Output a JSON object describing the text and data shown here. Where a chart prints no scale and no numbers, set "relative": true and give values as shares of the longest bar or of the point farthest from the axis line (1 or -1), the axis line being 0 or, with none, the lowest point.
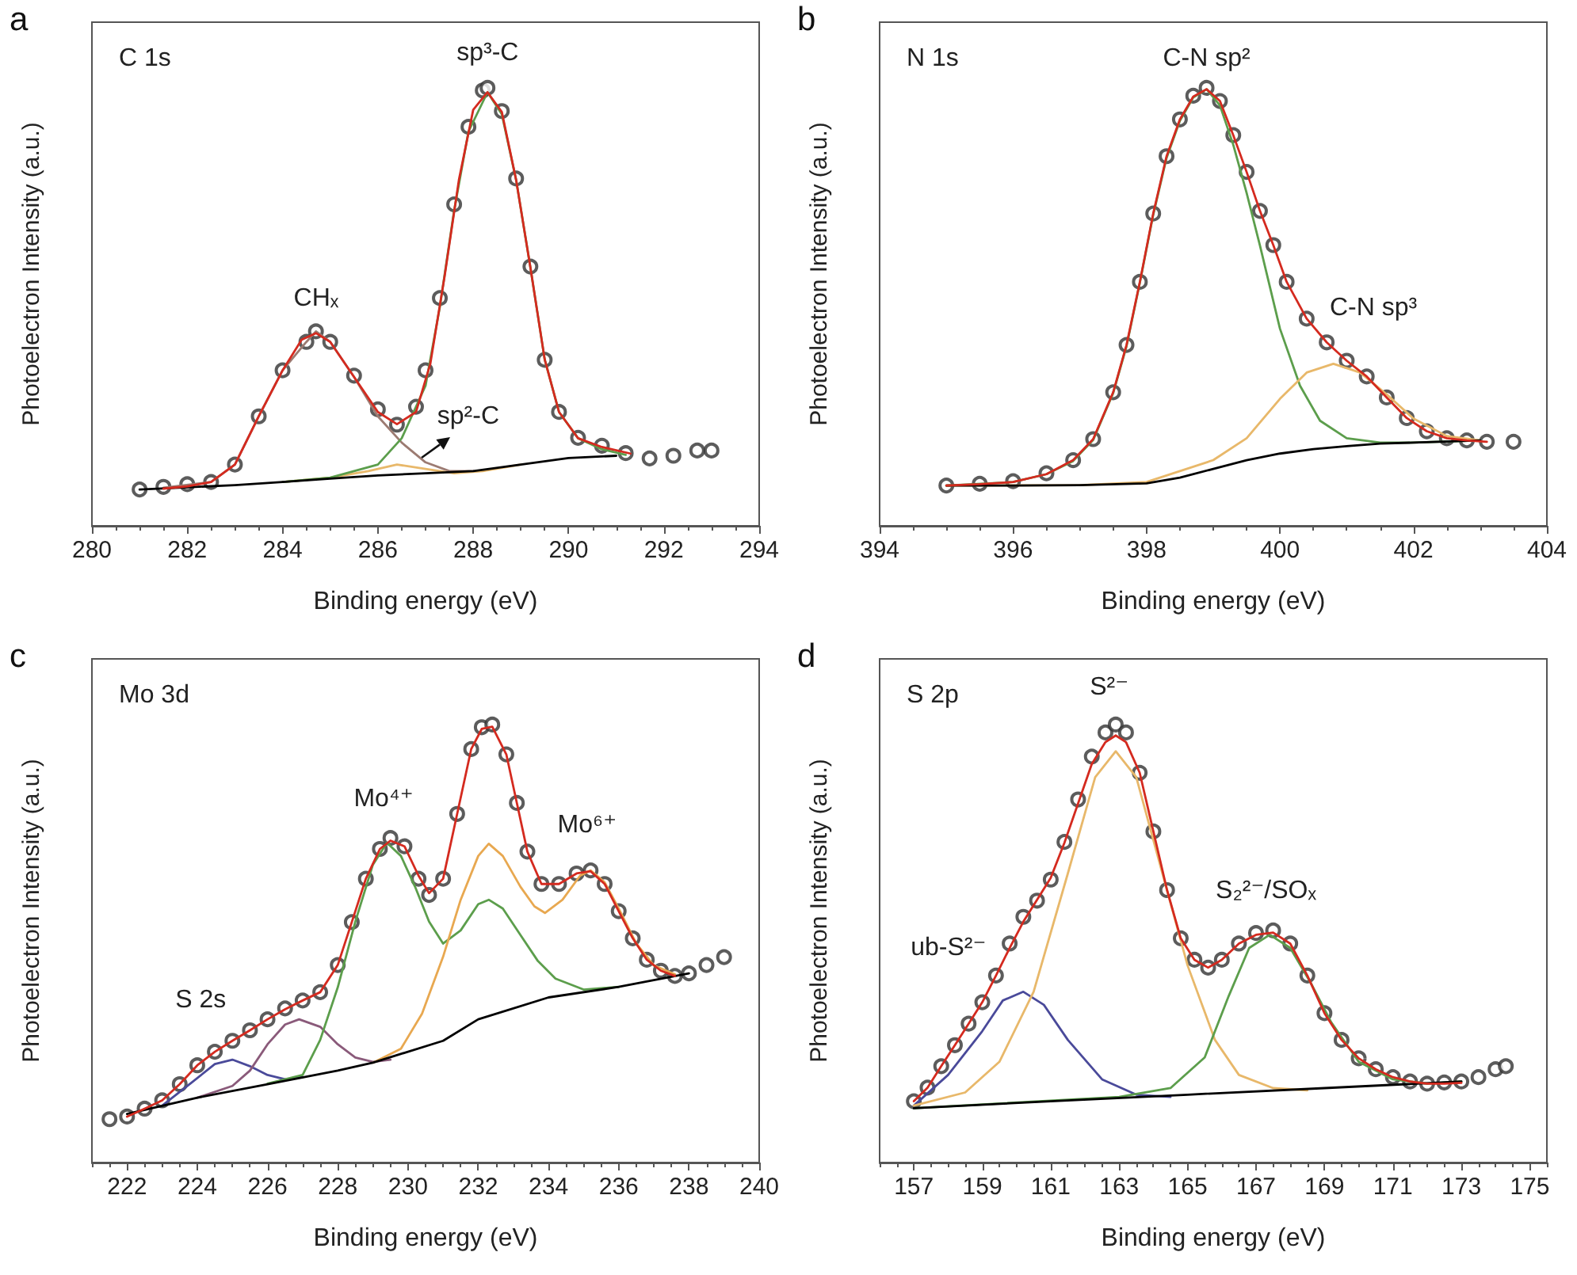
{
  "chart_data": [
    {
      "type": "line",
      "title": "C 1s",
      "xlabel": "Binding energy (eV)",
      "ylabel": "Photoelectron Intensity (a.u.)",
      "relative": true,
      "xlim": [
        280,
        294
      ],
      "xticks": [
        280,
        {
          "value": 280.5,
          "label": null
        },
        {
          "value": 281,
          "label": null
        },
        {
          "value": 281.5,
          "label": null
        },
        282,
        {
          "value": 282.5,
          "label": null
        },
        {
          "value": 283,
          "label": null
        },
        {
          "value": 283.5,
          "label": null
        },
        284,
        {
          "value": 284.5,
          "label": null
        },
        {
          "value": 285,
          "label": null
        },
        {
          "value": 285.5,
          "label": null
        },
        286,
        {
          "value": 286.5,
          "label": null
        },
        {
          "value": 287,
          "label": null
        },
        {
          "value": 287.5,
          "label": null
        },
        288,
        {
          "value": 288.5,
          "label": null
        },
        {
          "value": 289,
          "label": null
        },
        {
          "value": 289.5,
          "label": null
        },
        290,
        {
          "value": 290.5,
          "label": null
        },
        {
          "value": 291,
          "label": null
        },
        {
          "value": 291.5,
          "label": null
        },
        292,
        {
          "value": 292.5,
          "label": null
        },
        {
          "value": 293,
          "label": null
        },
        {
          "value": 293.5,
          "label": null
        },
        294
      ],
      "annotations": [
        "a",
        "CHₓ",
        "sp³-C",
        "sp²-C"
      ],
      "series": [
        {
          "type": "scatter",
          "marker": "circle",
          "color": "#333333",
          "x": [
            281,
            281.5,
            282,
            282.5,
            283,
            283.5,
            284,
            284.5,
            284.7,
            285,
            285.5,
            286,
            286.4,
            286.8,
            287,
            287.3,
            287.6,
            287.9,
            288.2,
            288.3,
            288.6,
            288.9,
            289.2,
            289.5,
            289.8,
            290.2,
            290.7,
            291.2,
            291.7,
            292.2,
            292.7,
            293
          ],
          "values": [
            0.083,
            0.089,
            0.095,
            0.1,
            0.14,
            0.25,
            0.355,
            0.42,
            0.444,
            0.42,
            0.343,
            0.266,
            0.231,
            0.272,
            0.355,
            0.52,
            0.734,
            0.911,
            0.994,
            1,
            0.947,
            0.793,
            0.592,
            0.379,
            0.26,
            0.201,
            0.183,
            0.166,
            0.154,
            0.16,
            0.172,
            0.172
          ]
        },
        {
          "color": "#9c7b72",
          "x": [
            281.5,
            282.5,
            283,
            283.5,
            284,
            284.5,
            284.7,
            285,
            285.5,
            286,
            286.5,
            287,
            287.5,
            288
          ],
          "values": [
            0.087,
            0.1,
            0.14,
            0.25,
            0.355,
            0.42,
            0.444,
            0.42,
            0.34,
            0.25,
            0.19,
            0.145,
            0.125,
            0.125
          ]
        },
        {
          "color": "#e8b86a",
          "x": [
            284,
            285,
            285.8,
            286.4,
            287,
            287.6,
            288.2,
            289
          ],
          "values": [
            0.1,
            0.11,
            0.125,
            0.14,
            0.13,
            0.12,
            0.125,
            0.14
          ]
        },
        {
          "color": "#5c9e4c",
          "x": [
            284,
            285,
            286,
            286.5,
            287,
            287.3,
            287.6,
            287.9,
            288.3,
            288.6,
            288.9,
            289.2,
            289.5,
            289.8,
            290.2,
            290.7,
            291.2
          ],
          "values": [
            0.1,
            0.11,
            0.14,
            0.2,
            0.32,
            0.5,
            0.72,
            0.9,
            0.99,
            0.94,
            0.79,
            0.59,
            0.38,
            0.26,
            0.2,
            0.175,
            0.162
          ]
        },
        {
          "color": "#000000",
          "x": [
            281,
            282,
            283,
            284,
            285,
            286,
            287,
            288,
            289,
            290,
            291
          ],
          "values": [
            0.083,
            0.088,
            0.093,
            0.1,
            0.108,
            0.115,
            0.12,
            0.125,
            0.14,
            0.155,
            0.16
          ]
        },
        {
          "color": "#d42a1f",
          "x": [
            281.5,
            282,
            282.5,
            283,
            283.5,
            284,
            284.4,
            284.7,
            285,
            285.5,
            286,
            286.4,
            286.8,
            287.1,
            287.4,
            287.7,
            288,
            288.3,
            288.6,
            288.9,
            289.2,
            289.5,
            289.8,
            290.2,
            290.7,
            291.3
          ],
          "values": [
            0.085,
            0.09,
            0.1,
            0.14,
            0.25,
            0.355,
            0.425,
            0.44,
            0.42,
            0.34,
            0.26,
            0.232,
            0.26,
            0.37,
            0.57,
            0.79,
            0.95,
            0.99,
            0.945,
            0.79,
            0.59,
            0.38,
            0.26,
            0.2,
            0.18,
            0.165
          ]
        }
      ]
    },
    {
      "type": "line",
      "title": "N 1s",
      "xlabel": "Binding energy (eV)",
      "ylabel": "Photoelectron Intensity (a.u.)",
      "relative": true,
      "xlim": [
        394,
        404
      ],
      "xticks": [
        394,
        {
          "value": 394.5,
          "label": null
        },
        {
          "value": 395,
          "label": null
        },
        {
          "value": 395.5,
          "label": null
        },
        396,
        {
          "value": 396.5,
          "label": null
        },
        {
          "value": 397,
          "label": null
        },
        {
          "value": 397.5,
          "label": null
        },
        398,
        {
          "value": 398.5,
          "label": null
        },
        {
          "value": 399,
          "label": null
        },
        {
          "value": 399.5,
          "label": null
        },
        400,
        {
          "value": 400.5,
          "label": null
        },
        {
          "value": 401,
          "label": null
        },
        {
          "value": 401.5,
          "label": null
        },
        402,
        {
          "value": 402.5,
          "label": null
        },
        {
          "value": 403,
          "label": null
        },
        {
          "value": 403.5,
          "label": null
        },
        404
      ],
      "annotations": [
        "b",
        "C-N sp²",
        "C-N sp³"
      ],
      "series": [
        {
          "type": "scatter",
          "marker": "circle",
          "color": "#333333",
          "x": [
            395,
            395.5,
            396,
            396.5,
            396.9,
            397.2,
            397.5,
            397.7,
            397.9,
            398.1,
            398.3,
            398.5,
            398.7,
            398.9,
            399.1,
            399.3,
            399.5,
            399.7,
            399.9,
            400.1,
            400.4,
            400.7,
            401,
            401.3,
            401.6,
            401.9,
            402.2,
            402.5,
            402.8,
            403.1,
            403.5
          ],
          "values": [
            0.092,
            0.096,
            0.102,
            0.12,
            0.15,
            0.198,
            0.305,
            0.413,
            0.557,
            0.713,
            0.844,
            0.928,
            0.982,
            1,
            0.97,
            0.892,
            0.808,
            0.719,
            0.641,
            0.557,
            0.473,
            0.419,
            0.377,
            0.341,
            0.293,
            0.246,
            0.216,
            0.2,
            0.195,
            0.192,
            0.192
          ]
        },
        {
          "color": "#5c9e4c",
          "x": [
            395,
            396,
            396.5,
            396.9,
            397.2,
            397.5,
            397.7,
            397.9,
            398.1,
            398.3,
            398.5,
            398.7,
            398.9,
            399.1,
            399.3,
            399.5,
            399.7,
            400,
            400.3,
            400.6,
            401,
            401.5,
            402,
            403
          ],
          "values": [
            0.092,
            0.1,
            0.118,
            0.148,
            0.196,
            0.303,
            0.41,
            0.555,
            0.71,
            0.84,
            0.925,
            0.978,
            0.997,
            0.96,
            0.87,
            0.76,
            0.64,
            0.45,
            0.32,
            0.24,
            0.2,
            0.19,
            0.19,
            0.195
          ]
        },
        {
          "color": "#e8b86a",
          "x": [
            395,
            397,
            398,
            399,
            399.5,
            400,
            400.4,
            400.8,
            401.2,
            401.6,
            402,
            402.5,
            403
          ],
          "values": [
            0.092,
            0.093,
            0.1,
            0.15,
            0.2,
            0.29,
            0.35,
            0.37,
            0.35,
            0.3,
            0.245,
            0.205,
            0.195
          ]
        },
        {
          "color": "#000000",
          "x": [
            395,
            396,
            397,
            398,
            398.5,
            399,
            399.5,
            400,
            400.5,
            401,
            401.5,
            402,
            403
          ],
          "values": [
            0.092,
            0.092,
            0.093,
            0.097,
            0.11,
            0.13,
            0.15,
            0.165,
            0.175,
            0.182,
            0.188,
            0.19,
            0.195
          ]
        },
        {
          "color": "#d42a1f",
          "x": [
            395,
            395.5,
            396,
            396.5,
            396.9,
            397.2,
            397.5,
            397.7,
            397.9,
            398.1,
            398.3,
            398.5,
            398.7,
            398.9,
            399.1,
            399.3,
            399.5,
            399.7,
            399.9,
            400.1,
            400.4,
            400.7,
            401,
            401.3,
            401.6,
            401.9,
            402.2,
            402.5,
            402.8,
            403.1
          ],
          "values": [
            0.092,
            0.095,
            0.1,
            0.118,
            0.15,
            0.198,
            0.305,
            0.413,
            0.557,
            0.713,
            0.844,
            0.928,
            0.98,
            0.997,
            0.97,
            0.892,
            0.808,
            0.719,
            0.641,
            0.557,
            0.473,
            0.419,
            0.377,
            0.341,
            0.293,
            0.246,
            0.216,
            0.2,
            0.195,
            0.192
          ]
        }
      ]
    },
    {
      "type": "line",
      "title": "Mo 3d",
      "xlabel": "Binding energy (eV)",
      "ylabel": "Photoelectron Intensity (a.u.)",
      "relative": true,
      "xlim": [
        221,
        240
      ],
      "xticks": [
        {
          "value": 221,
          "label": null
        },
        {
          "value": 221.5,
          "label": null
        },
        222,
        {
          "value": 222.5,
          "label": null
        },
        {
          "value": 223,
          "label": null
        },
        {
          "value": 223.5,
          "label": null
        },
        224,
        {
          "value": 224.5,
          "label": null
        },
        {
          "value": 225,
          "label": null
        },
        {
          "value": 225.5,
          "label": null
        },
        226,
        {
          "value": 226.5,
          "label": null
        },
        {
          "value": 227,
          "label": null
        },
        {
          "value": 227.5,
          "label": null
        },
        228,
        {
          "value": 228.5,
          "label": null
        },
        {
          "value": 229,
          "label": null
        },
        {
          "value": 229.5,
          "label": null
        },
        230,
        {
          "value": 230.5,
          "label": null
        },
        {
          "value": 231,
          "label": null
        },
        {
          "value": 231.5,
          "label": null
        },
        232,
        {
          "value": 232.5,
          "label": null
        },
        {
          "value": 233,
          "label": null
        },
        {
          "value": 233.5,
          "label": null
        },
        234,
        {
          "value": 234.5,
          "label": null
        },
        {
          "value": 235,
          "label": null
        },
        {
          "value": 235.5,
          "label": null
        },
        236,
        {
          "value": 236.5,
          "label": null
        },
        {
          "value": 237,
          "label": null
        },
        {
          "value": 237.5,
          "label": null
        },
        238,
        {
          "value": 238.5,
          "label": null
        },
        {
          "value": 239,
          "label": null
        },
        {
          "value": 239.5,
          "label": null
        },
        240
      ],
      "annotations": [
        "c",
        "S 2s",
        "Mo⁴⁺",
        "Mo⁶⁺"
      ],
      "series": [
        {
          "type": "scatter",
          "marker": "circle",
          "color": "#333333",
          "x": [
            221.5,
            222,
            222.5,
            223,
            223.5,
            224,
            224.5,
            225,
            225.5,
            226,
            226.5,
            227,
            227.5,
            228,
            228.4,
            228.8,
            229.2,
            229.5,
            229.9,
            230.3,
            230.6,
            231,
            231.4,
            231.8,
            232.1,
            232.4,
            232.8,
            233.1,
            233.4,
            233.8,
            234.3,
            234.8,
            235.2,
            235.6,
            236,
            236.4,
            236.8,
            237.2,
            237.6,
            238,
            238.5,
            239
          ],
          "values": [
            0.099,
            0.105,
            0.123,
            0.142,
            0.179,
            0.222,
            0.253,
            0.278,
            0.302,
            0.327,
            0.352,
            0.37,
            0.389,
            0.451,
            0.549,
            0.648,
            0.716,
            0.741,
            0.722,
            0.648,
            0.611,
            0.648,
            0.796,
            0.944,
            0.994,
            1,
            0.932,
            0.821,
            0.71,
            0.636,
            0.636,
            0.66,
            0.667,
            0.636,
            0.574,
            0.512,
            0.463,
            0.438,
            0.426,
            0.432,
            0.451,
            0.469
          ]
        },
        {
          "color": "#4a4a9a",
          "x": [
            223,
            223.8,
            224.5,
            225,
            225.5,
            226,
            226.5,
            227
          ],
          "values": [
            0.13,
            0.18,
            0.225,
            0.235,
            0.22,
            0.2,
            0.19,
            0.195
          ]
        },
        {
          "color": "#8a5a7a",
          "x": [
            224,
            225,
            225.5,
            226,
            226.5,
            226.9,
            227.5,
            228,
            228.5,
            229,
            229.5
          ],
          "values": [
            0.148,
            0.175,
            0.21,
            0.27,
            0.315,
            0.327,
            0.31,
            0.27,
            0.24,
            0.23,
            0.235
          ]
        },
        {
          "color": "#5c9e4c",
          "x": [
            226,
            227,
            227.5,
            228,
            228.5,
            229,
            229.4,
            229.8,
            230.2,
            230.6,
            231,
            231.5,
            232,
            232.3,
            232.7,
            233.2,
            233.7,
            234.2,
            235,
            236
          ],
          "values": [
            0.18,
            0.2,
            0.28,
            0.4,
            0.55,
            0.68,
            0.73,
            0.7,
            0.63,
            0.55,
            0.5,
            0.53,
            0.59,
            0.6,
            0.58,
            0.52,
            0.46,
            0.42,
            0.395,
            0.401
          ]
        },
        {
          "color": "#e8a850",
          "x": [
            229,
            229.8,
            230.4,
            231,
            231.5,
            232,
            232.3,
            232.7,
            233.2,
            233.6,
            233.9,
            234.4,
            234.9,
            235.2,
            235.6,
            236,
            236.5,
            237,
            237.6
          ],
          "values": [
            0.228,
            0.26,
            0.34,
            0.47,
            0.6,
            0.7,
            0.728,
            0.7,
            0.63,
            0.585,
            0.57,
            0.6,
            0.655,
            0.667,
            0.64,
            0.58,
            0.5,
            0.45,
            0.43
          ]
        },
        {
          "color": "#000000",
          "x": [
            222,
            224,
            226,
            228,
            229,
            231,
            232,
            234,
            236,
            238
          ],
          "values": [
            0.111,
            0.148,
            0.179,
            0.21,
            0.228,
            0.278,
            0.327,
            0.377,
            0.401,
            0.432
          ]
        },
        {
          "color": "#d42a1f",
          "x": [
            222,
            222.5,
            223,
            223.5,
            224,
            224.5,
            225,
            225.5,
            226,
            226.5,
            227,
            227.5,
            228,
            228.4,
            228.8,
            229.2,
            229.5,
            229.9,
            230.3,
            230.6,
            231,
            231.4,
            231.8,
            232.1,
            232.4,
            232.8,
            233.1,
            233.4,
            233.8,
            234.3,
            234.8,
            235.2,
            235.6,
            236,
            236.4,
            236.8,
            237.2,
            237.6
          ],
          "values": [
            0.105,
            0.123,
            0.142,
            0.179,
            0.222,
            0.253,
            0.278,
            0.302,
            0.327,
            0.35,
            0.37,
            0.389,
            0.451,
            0.549,
            0.648,
            0.716,
            0.735,
            0.722,
            0.655,
            0.615,
            0.648,
            0.796,
            0.944,
            0.99,
            0.995,
            0.932,
            0.821,
            0.71,
            0.636,
            0.636,
            0.66,
            0.665,
            0.636,
            0.574,
            0.512,
            0.463,
            0.438,
            0.426
          ]
        }
      ]
    },
    {
      "type": "line",
      "title": "S 2p",
      "xlabel": "Binding energy (eV)",
      "ylabel": "Photoelectron Intensity (a.u.)",
      "relative": true,
      "xlim": [
        156,
        175.5
      ],
      "xticks": [
        {
          "value": 156,
          "label": null
        },
        {
          "value": 156.5,
          "label": null
        },
        157,
        {
          "value": 157.5,
          "label": null
        },
        {
          "value": 158,
          "label": null
        },
        {
          "value": 158.5,
          "label": null
        },
        159,
        {
          "value": 159.5,
          "label": null
        },
        {
          "value": 160,
          "label": null
        },
        {
          "value": 160.5,
          "label": null
        },
        161,
        {
          "value": 161.5,
          "label": null
        },
        {
          "value": 162,
          "label": null
        },
        {
          "value": 162.5,
          "label": null
        },
        163,
        {
          "value": 163.5,
          "label": null
        },
        {
          "value": 164,
          "label": null
        },
        {
          "value": 164.5,
          "label": null
        },
        165,
        {
          "value": 165.5,
          "label": null
        },
        {
          "value": 166,
          "label": null
        },
        {
          "value": 166.5,
          "label": null
        },
        167,
        {
          "value": 167.5,
          "label": null
        },
        {
          "value": 168,
          "label": null
        },
        {
          "value": 168.5,
          "label": null
        },
        169,
        {
          "value": 169.5,
          "label": null
        },
        {
          "value": 170,
          "label": null
        },
        {
          "value": 170.5,
          "label": null
        },
        171,
        {
          "value": 171.5,
          "label": null
        },
        {
          "value": 172,
          "label": null
        },
        {
          "value": 172.5,
          "label": null
        },
        173,
        {
          "value": 173.5,
          "label": null
        },
        {
          "value": 174,
          "label": null
        },
        {
          "value": 174.5,
          "label": null
        },
        175,
        {
          "value": 175.5,
          "label": null
        }
      ],
      "annotations": [
        "d",
        "S²⁻",
        "S₂²⁻/SOₓ",
        "ub-S²⁻"
      ],
      "series": [
        {
          "type": "scatter",
          "marker": "circle",
          "color": "#333333",
          "x": [
            157,
            157.4,
            157.8,
            158.2,
            158.6,
            159,
            159.4,
            159.8,
            160.2,
            160.6,
            161,
            161.4,
            161.8,
            162.2,
            162.6,
            162.9,
            163.2,
            163.6,
            164,
            164.4,
            164.8,
            165.2,
            165.6,
            166,
            166.5,
            167,
            167.5,
            168,
            168.5,
            169,
            169.5,
            170,
            170.5,
            171,
            171.5,
            172,
            172.5,
            173,
            173.5,
            174,
            174.3
          ],
          "values": [
            0.14,
            0.171,
            0.22,
            0.268,
            0.317,
            0.366,
            0.427,
            0.5,
            0.561,
            0.598,
            0.646,
            0.732,
            0.829,
            0.927,
            0.982,
            1,
            0.982,
            0.89,
            0.756,
            0.622,
            0.512,
            0.463,
            0.445,
            0.463,
            0.5,
            0.524,
            0.53,
            0.5,
            0.427,
            0.341,
            0.28,
            0.238,
            0.213,
            0.195,
            0.185,
            0.18,
            0.183,
            0.185,
            0.195,
            0.213,
            0.22
          ]
        },
        {
          "color": "#4a4a9a",
          "x": [
            157,
            158,
            159,
            159.6,
            160.2,
            160.8,
            161.5,
            162.5,
            163.5,
            164.5
          ],
          "values": [
            0.13,
            0.2,
            0.3,
            0.37,
            0.39,
            0.36,
            0.28,
            0.19,
            0.155,
            0.15
          ]
        },
        {
          "color": "#e8b86a",
          "x": [
            157,
            158.5,
            159.5,
            160.5,
            161.5,
            162.3,
            162.9,
            163.5,
            164.3,
            165,
            165.8,
            166.5,
            167.5,
            168.5
          ],
          "values": [
            0.13,
            0.16,
            0.23,
            0.39,
            0.66,
            0.88,
            0.939,
            0.88,
            0.65,
            0.45,
            0.28,
            0.2,
            0.17,
            0.165
          ]
        },
        {
          "color": "#5c9e4c",
          "x": [
            157,
            163,
            164.5,
            165.5,
            166.2,
            166.8,
            167.4,
            168,
            168.6,
            169.2,
            170,
            171,
            172,
            173
          ],
          "values": [
            0.124,
            0.15,
            0.17,
            0.24,
            0.38,
            0.49,
            0.52,
            0.49,
            0.41,
            0.32,
            0.23,
            0.19,
            0.18,
            0.185
          ]
        },
        {
          "color": "#000000",
          "x": [
            157,
            161,
            165,
            169,
            173
          ],
          "values": [
            0.124,
            0.14,
            0.155,
            0.17,
            0.185
          ]
        },
        {
          "color": "#d42a1f",
          "x": [
            157,
            157.4,
            157.8,
            158.2,
            158.6,
            159,
            159.4,
            159.8,
            160.2,
            160.6,
            161,
            161.4,
            161.8,
            162.2,
            162.6,
            162.9,
            163.2,
            163.6,
            164,
            164.4,
            164.8,
            165.2,
            165.6,
            166,
            166.5,
            167,
            167.5,
            168,
            168.5,
            169,
            169.5,
            170,
            170.5,
            171,
            171.5,
            172,
            172.5,
            173
          ],
          "values": [
            0.14,
            0.171,
            0.22,
            0.268,
            0.317,
            0.366,
            0.427,
            0.49,
            0.55,
            0.6,
            0.65,
            0.73,
            0.82,
            0.91,
            0.96,
            0.975,
            0.96,
            0.89,
            0.756,
            0.622,
            0.512,
            0.463,
            0.445,
            0.463,
            0.5,
            0.52,
            0.525,
            0.5,
            0.427,
            0.341,
            0.28,
            0.238,
            0.213,
            0.195,
            0.185,
            0.18,
            0.18,
            0.182
          ]
        }
      ]
    }
  ]
}
